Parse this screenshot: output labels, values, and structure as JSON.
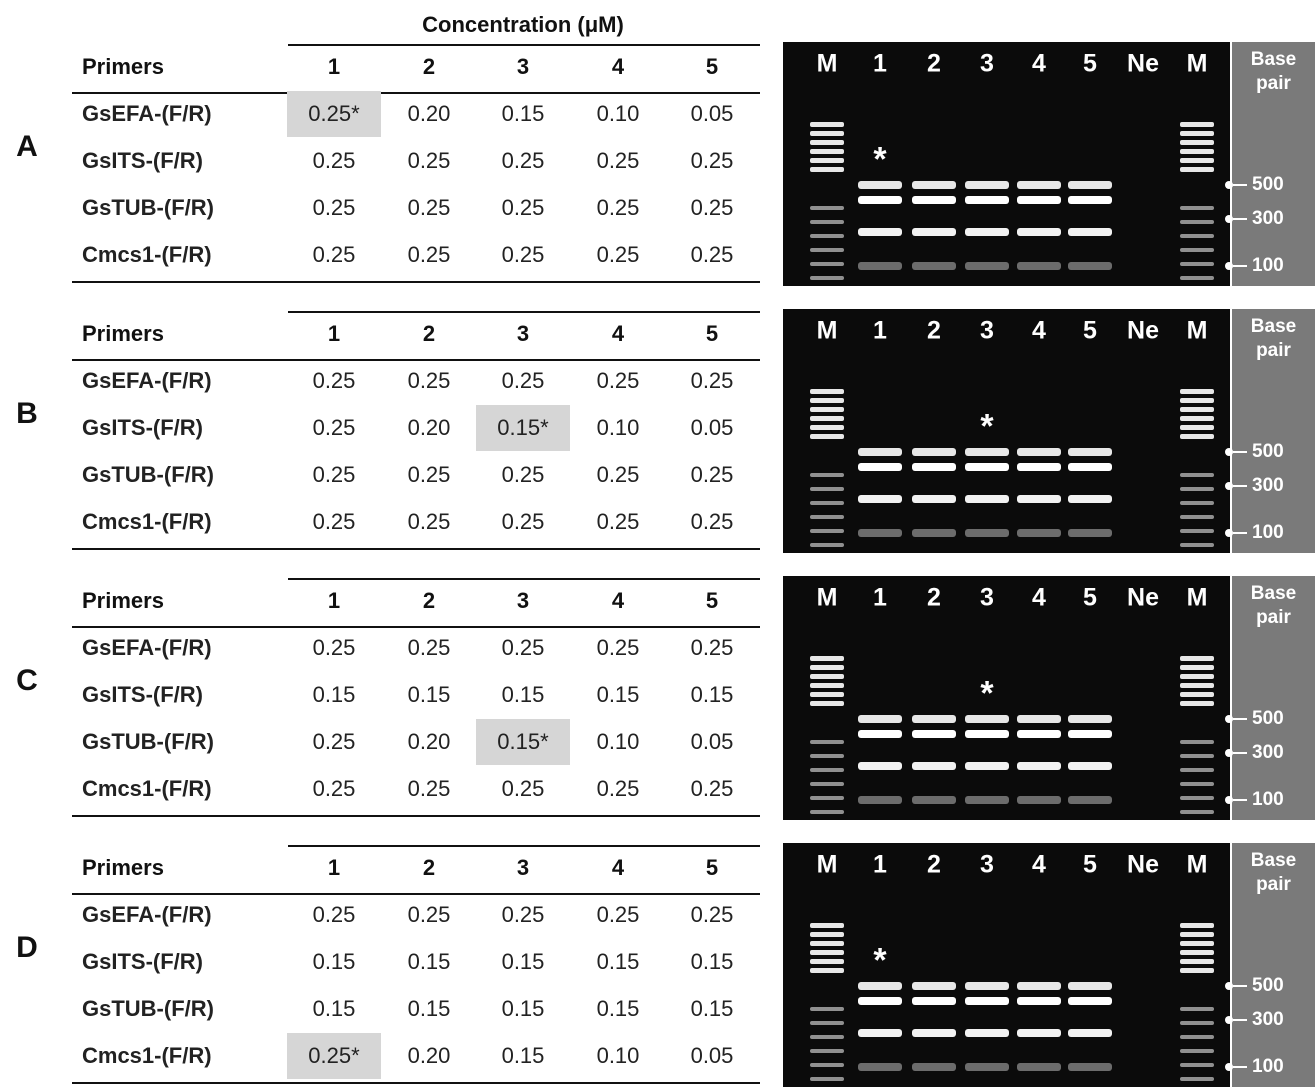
{
  "header": "Concentration (μM)",
  "columns": [
    "Primers",
    "1",
    "2",
    "3",
    "4",
    "5"
  ],
  "panels": [
    {
      "label": "A",
      "rows": [
        [
          "GsEFA-(F/R)",
          "0.25*",
          "0.20",
          "0.15",
          "0.10",
          "0.05"
        ],
        [
          "GsITS-(F/R)",
          "0.25",
          "0.25",
          "0.25",
          "0.25",
          "0.25"
        ],
        [
          "GsTUB-(F/R)",
          "0.25",
          "0.25",
          "0.25",
          "0.25",
          "0.25"
        ],
        [
          "Cmcs1-(F/R)",
          "0.25",
          "0.25",
          "0.25",
          "0.25",
          "0.25"
        ]
      ]
    },
    {
      "label": "B",
      "rows": [
        [
          "GsEFA-(F/R)",
          "0.25",
          "0.25",
          "0.25",
          "0.25",
          "0.25"
        ],
        [
          "GsITS-(F/R)",
          "0.25",
          "0.20",
          "0.15*",
          "0.10",
          "0.05"
        ],
        [
          "GsTUB-(F/R)",
          "0.25",
          "0.25",
          "0.25",
          "0.25",
          "0.25"
        ],
        [
          "Cmcs1-(F/R)",
          "0.25",
          "0.25",
          "0.25",
          "0.25",
          "0.25"
        ]
      ]
    },
    {
      "label": "C",
      "rows": [
        [
          "GsEFA-(F/R)",
          "0.25",
          "0.25",
          "0.25",
          "0.25",
          "0.25"
        ],
        [
          "GsITS-(F/R)",
          "0.15",
          "0.15",
          "0.15",
          "0.15",
          "0.15"
        ],
        [
          "GsTUB-(F/R)",
          "0.25",
          "0.20",
          "0.15*",
          "0.10",
          "0.05"
        ],
        [
          "Cmcs1-(F/R)",
          "0.25",
          "0.25",
          "0.25",
          "0.25",
          "0.25"
        ]
      ]
    },
    {
      "label": "D",
      "rows": [
        [
          "GsEFA-(F/R)",
          "0.25",
          "0.25",
          "0.25",
          "0.25",
          "0.25"
        ],
        [
          "GsITS-(F/R)",
          "0.15",
          "0.15",
          "0.15",
          "0.15",
          "0.15"
        ],
        [
          "GsTUB-(F/R)",
          "0.15",
          "0.15",
          "0.15",
          "0.15",
          "0.15"
        ],
        [
          "Cmcs1-(F/R)",
          "0.25*",
          "0.20",
          "0.15",
          "0.10",
          "0.05"
        ]
      ]
    }
  ],
  "gel": {
    "lanes": [
      "M",
      "1",
      "2",
      "3",
      "4",
      "5",
      "Ne",
      "M"
    ],
    "scale_title": "Base pair",
    "sizes": [
      "500",
      "300",
      "100"
    ],
    "star": "*"
  }
}
